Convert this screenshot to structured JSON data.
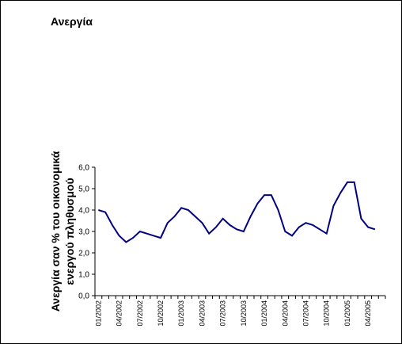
{
  "chart_data": {
    "type": "line",
    "title": "Ανεργία",
    "ylabel": [
      "Ανεργία σαν % του οικονομικά",
      "ενεργού πληθυσμού"
    ],
    "categories": [
      "01/2002",
      null,
      null,
      "04/2002",
      null,
      null,
      "07/2002",
      null,
      null,
      "10/2002",
      null,
      null,
      "01/2003",
      null,
      null,
      "04/2003",
      null,
      null,
      "07/2003",
      null,
      null,
      "10/2003",
      null,
      null,
      "01/2004",
      null,
      null,
      "04/2004",
      null,
      null,
      "07/2004",
      null,
      null,
      "10/2004",
      null,
      null,
      "01/2005",
      null,
      null,
      "04/2005",
      null,
      null
    ],
    "series": [
      {
        "name": "Ανεργία",
        "color": "#000080",
        "values": [
          4.0,
          3.9,
          3.3,
          2.8,
          2.5,
          2.7,
          3.0,
          2.9,
          2.8,
          2.7,
          3.4,
          3.7,
          4.1,
          4.0,
          3.7,
          3.4,
          2.9,
          3.2,
          3.6,
          3.3,
          3.1,
          3.0,
          3.7,
          4.3,
          4.7,
          4.7,
          4.0,
          3.0,
          2.8,
          3.2,
          3.4,
          3.3,
          3.1,
          2.9,
          4.2,
          4.8,
          5.3,
          5.3,
          3.6,
          3.2,
          3.1,
          null
        ]
      }
    ],
    "ylim": [
      0,
      6
    ],
    "yticks": [
      {
        "value": 0,
        "label": "0,0"
      },
      {
        "value": 1,
        "label": "1,0"
      },
      {
        "value": 2,
        "label": "2,0"
      },
      {
        "value": 3,
        "label": "3,0"
      },
      {
        "value": 4,
        "label": "4,0"
      },
      {
        "value": 5,
        "label": "5,0"
      },
      {
        "value": 6,
        "label": "6,0"
      }
    ]
  }
}
